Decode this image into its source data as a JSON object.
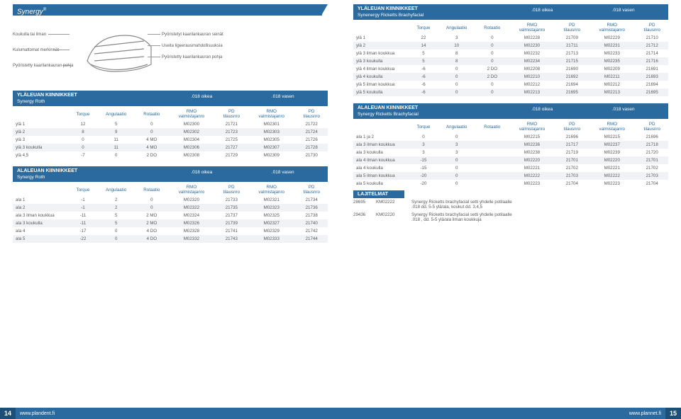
{
  "brand": "Synergy",
  "diagram_labels": {
    "l1": "Koukulla tai ilman",
    "l2": "Kulumattomat merkinnät",
    "l3": "Pyöristetty kaarilankauran pohja",
    "r1": "Pyöristetyt kaarilankauran seinät",
    "r2": "Useita ligeerausmahdollisuuksia",
    "r3": "Pyöristetty kaarilankauran pohja"
  },
  "col_hdr": {
    "torque": "Torque",
    "ang": "Angulaatio",
    "rot": "Rotaatio",
    "rmo": "RMO",
    "valm": "valmistajanro",
    "pd": "PD",
    "til": "tilausnro",
    "o18": ".018 oikea",
    "v18": ".018 vasen"
  },
  "t1": {
    "title": "YLÄLEUAN KIINNIKKEET",
    "sub": "Synergy Roth",
    "rows": [
      [
        "ylä 1",
        "12",
        "5",
        "0",
        "M02300",
        "21721",
        "M02301",
        "21722"
      ],
      [
        "ylä 2",
        "8",
        "9",
        "0",
        "M02302",
        "21723",
        "M02303",
        "21724"
      ],
      [
        "ylä 3",
        "0",
        "11",
        "4 MO",
        "M02304",
        "21725",
        "M02305",
        "21726"
      ],
      [
        "ylä 3 koukulla",
        "0",
        "11",
        "4 MO",
        "M02306",
        "21727",
        "M02307",
        "21728"
      ],
      [
        "ylä 4,5",
        "-7",
        "0",
        "2 DO",
        "M02308",
        "21729",
        "M02309",
        "21730"
      ]
    ]
  },
  "t2": {
    "title": "ALALEUAN KIINNIKKEET",
    "sub": "Synergy Roth",
    "rows": [
      [
        "ala 1",
        "-1",
        "2",
        "0",
        "M02320",
        "21733",
        "M02321",
        "21734"
      ],
      [
        "ala 2",
        "-1",
        "2",
        "0",
        "M02322",
        "21735",
        "M02323",
        "21736"
      ],
      [
        "ala 3 ilman koukkua",
        "-11",
        "5",
        "2 MO",
        "M02324",
        "21737",
        "M02325",
        "21738"
      ],
      [
        "ala 3 koukulla",
        "-11",
        "5",
        "2 MO",
        "M02326",
        "21739",
        "M02327",
        "21740"
      ],
      [
        "ala 4",
        "-17",
        "0",
        "4 DO",
        "M02328",
        "21741",
        "M02329",
        "21742"
      ],
      [
        "ala 5",
        "-22",
        "0",
        "4 DO",
        "M02332",
        "21743",
        "M02333",
        "21744"
      ]
    ]
  },
  "t3": {
    "title": "YLÄLEUAN KIINNIKKEET",
    "sub": "Synenergy Ricketts Brachyfacial",
    "rows": [
      [
        "ylä 1",
        "22",
        "3",
        "0",
        "M02228",
        "21709",
        "M02229",
        "21710"
      ],
      [
        "ylä 2",
        "14",
        "10",
        "0",
        "M02230",
        "21711",
        "M02231",
        "21712"
      ],
      [
        "ylä 3 ilman koukkua",
        "5",
        "8",
        "0",
        "M02232",
        "21713",
        "M02233",
        "21714"
      ],
      [
        "ylä 3 koukulla",
        "5",
        "8",
        "0",
        "M02234",
        "21715",
        "M02235",
        "21716"
      ],
      [
        "ylä 4 ilman koukkua",
        "-6",
        "0",
        "2 DO",
        "M02208",
        "21690",
        "M02209",
        "21691"
      ],
      [
        "ylä 4 koukulla",
        "-6",
        "0",
        "2 DO",
        "M02210",
        "21692",
        "M02211",
        "21693"
      ],
      [
        "ylä 5 ilman koukkua",
        "-6",
        "0",
        "0",
        "M02212",
        "21694",
        "M02212",
        "21694"
      ],
      [
        "ylä 5 koukulla",
        "-6",
        "0",
        "0",
        "M02213",
        "21695",
        "M02213",
        "21695"
      ]
    ]
  },
  "t4": {
    "title": "ALALEUAN KIINNIKKEET",
    "sub": "Synergy Ricketts Brachyfacial",
    "rows": [
      [
        "ala 1 ja 2",
        "0",
        "0",
        "",
        "M02215",
        "21696",
        "M02215",
        "21696"
      ],
      [
        "ala 3 ilman koukkua",
        "3",
        "3",
        "",
        "M02236",
        "21717",
        "M02237",
        "21718"
      ],
      [
        "ala 3 koukulla",
        "3",
        "3",
        "",
        "M02238",
        "21719",
        "M02239",
        "21720"
      ],
      [
        "ala 4 ilman koukkua",
        "-15",
        "0",
        "",
        "M02220",
        "21701",
        "M02220",
        "21701"
      ],
      [
        "ala 4 koukulla",
        "-15",
        "0",
        "",
        "M02221",
        "21702",
        "M02221",
        "21702"
      ],
      [
        "ala 5 ilman koukkua",
        "-20",
        "0",
        "",
        "M02222",
        "21703",
        "M02222",
        "21703"
      ],
      [
        "ala 5 koukulla",
        "-20",
        "0",
        "",
        "M02223",
        "21704",
        "M02223",
        "21704"
      ]
    ]
  },
  "lajit": {
    "title": "LAJITELMAT",
    "rows": [
      [
        "28695",
        "KM02222",
        "Synergy Ricketts brachyfacial setti yhdelle potilaalle\n.018 dd. 5-5 ylä/ala, koukut dd. 3,4,5"
      ],
      [
        "29436",
        "KM02220",
        "Synergy Ricketts brachyfacial setti yhdelle potilaalle\n.018 , dd. 5-5 ylä/ala ilman koukkuja"
      ]
    ]
  },
  "footer": {
    "left_num": "14",
    "left_url": "www.plandent.fi",
    "right_url": "www.plannet.fi",
    "right_num": "15"
  }
}
